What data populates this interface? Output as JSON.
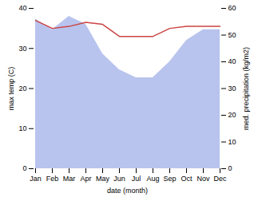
{
  "chart_data": {
    "type": "line",
    "categories": [
      "Jan",
      "Feb",
      "Mar",
      "Apr",
      "May",
      "Jun",
      "Jul",
      "Aug",
      "Sep",
      "Oct",
      "Nov",
      "Dec"
    ],
    "series": [
      {
        "type": "area",
        "axis": "y2",
        "color": "#b8c4ee",
        "values": [
          56,
          52,
          57,
          54,
          43,
          37,
          34,
          34,
          40,
          48,
          52,
          52
        ]
      },
      {
        "type": "line",
        "color": "#cc4444",
        "values": [
          37.0,
          35.0,
          35.5,
          36.5,
          36.0,
          33.0,
          33.0,
          33.0,
          35.0,
          35.5,
          35.5,
          35.5
        ]
      }
    ],
    "xlabel": "date (month)",
    "ylabel": "max temp (C)",
    "y2label": "med. precipitation (kg/m2)",
    "ylim": [
      0,
      40
    ],
    "yticks": [
      0,
      10,
      20,
      30,
      40
    ],
    "y2lim": [
      0,
      60
    ],
    "y2ticks": [
      0,
      10,
      20,
      30,
      40,
      50,
      60
    ]
  }
}
